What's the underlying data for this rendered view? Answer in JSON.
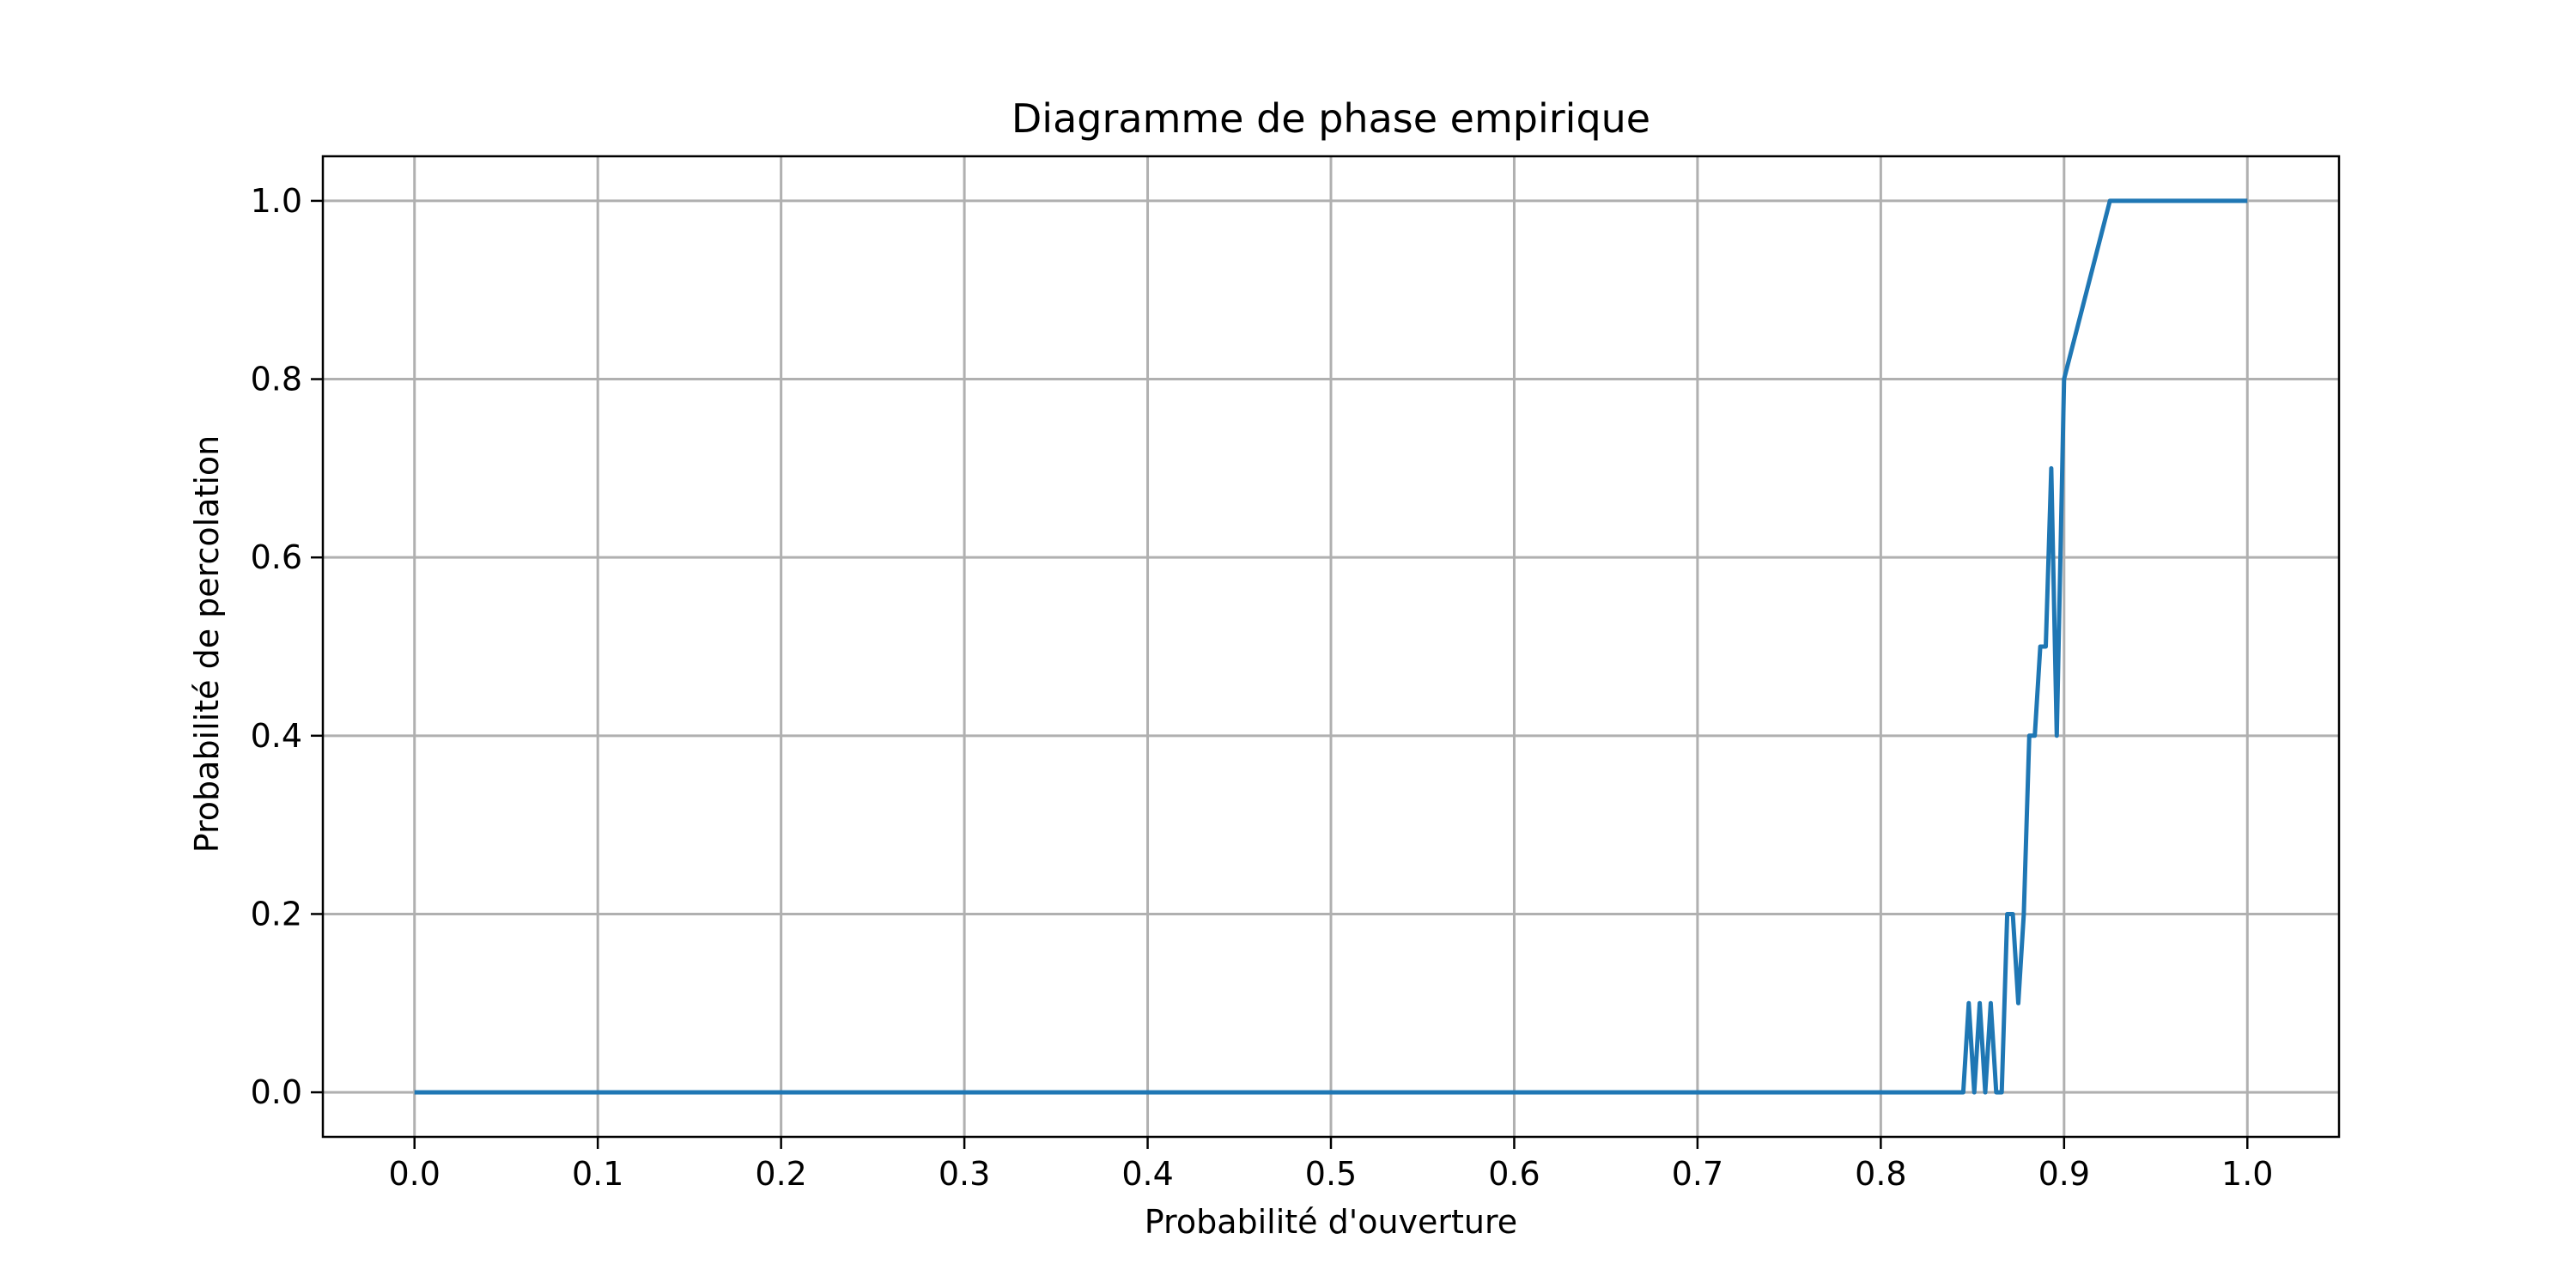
{
  "chart_data": {
    "type": "line",
    "title": "Diagramme de phase empirique",
    "xlabel": "Probabilité d'ouverture",
    "ylabel": "Probabilité de percolation",
    "xlim": [
      -0.05,
      1.05
    ],
    "ylim": [
      -0.05,
      1.05
    ],
    "x_ticks": [
      "0.0",
      "0.1",
      "0.2",
      "0.3",
      "0.4",
      "0.5",
      "0.6",
      "0.7",
      "0.8",
      "0.9",
      "1.0"
    ],
    "y_ticks": [
      "0.0",
      "0.2",
      "0.4",
      "0.6",
      "0.8",
      "1.0"
    ],
    "grid": true,
    "colors": {
      "series": "#1f77b4",
      "grid": "#b0b0b0"
    },
    "series": [
      {
        "x": [
          0.0,
          0.845,
          0.848,
          0.851,
          0.854,
          0.857,
          0.86,
          0.863,
          0.866,
          0.869,
          0.872,
          0.875,
          0.878,
          0.881,
          0.884,
          0.887,
          0.89,
          0.893,
          0.896,
          0.9,
          0.925,
          0.95,
          1.0
        ],
        "y": [
          0.0,
          0.0,
          0.1,
          0.0,
          0.1,
          0.0,
          0.1,
          0.0,
          0.0,
          0.2,
          0.2,
          0.1,
          0.2,
          0.4,
          0.4,
          0.5,
          0.5,
          0.7,
          0.4,
          0.8,
          1.0,
          1.0,
          1.0
        ]
      }
    ]
  }
}
